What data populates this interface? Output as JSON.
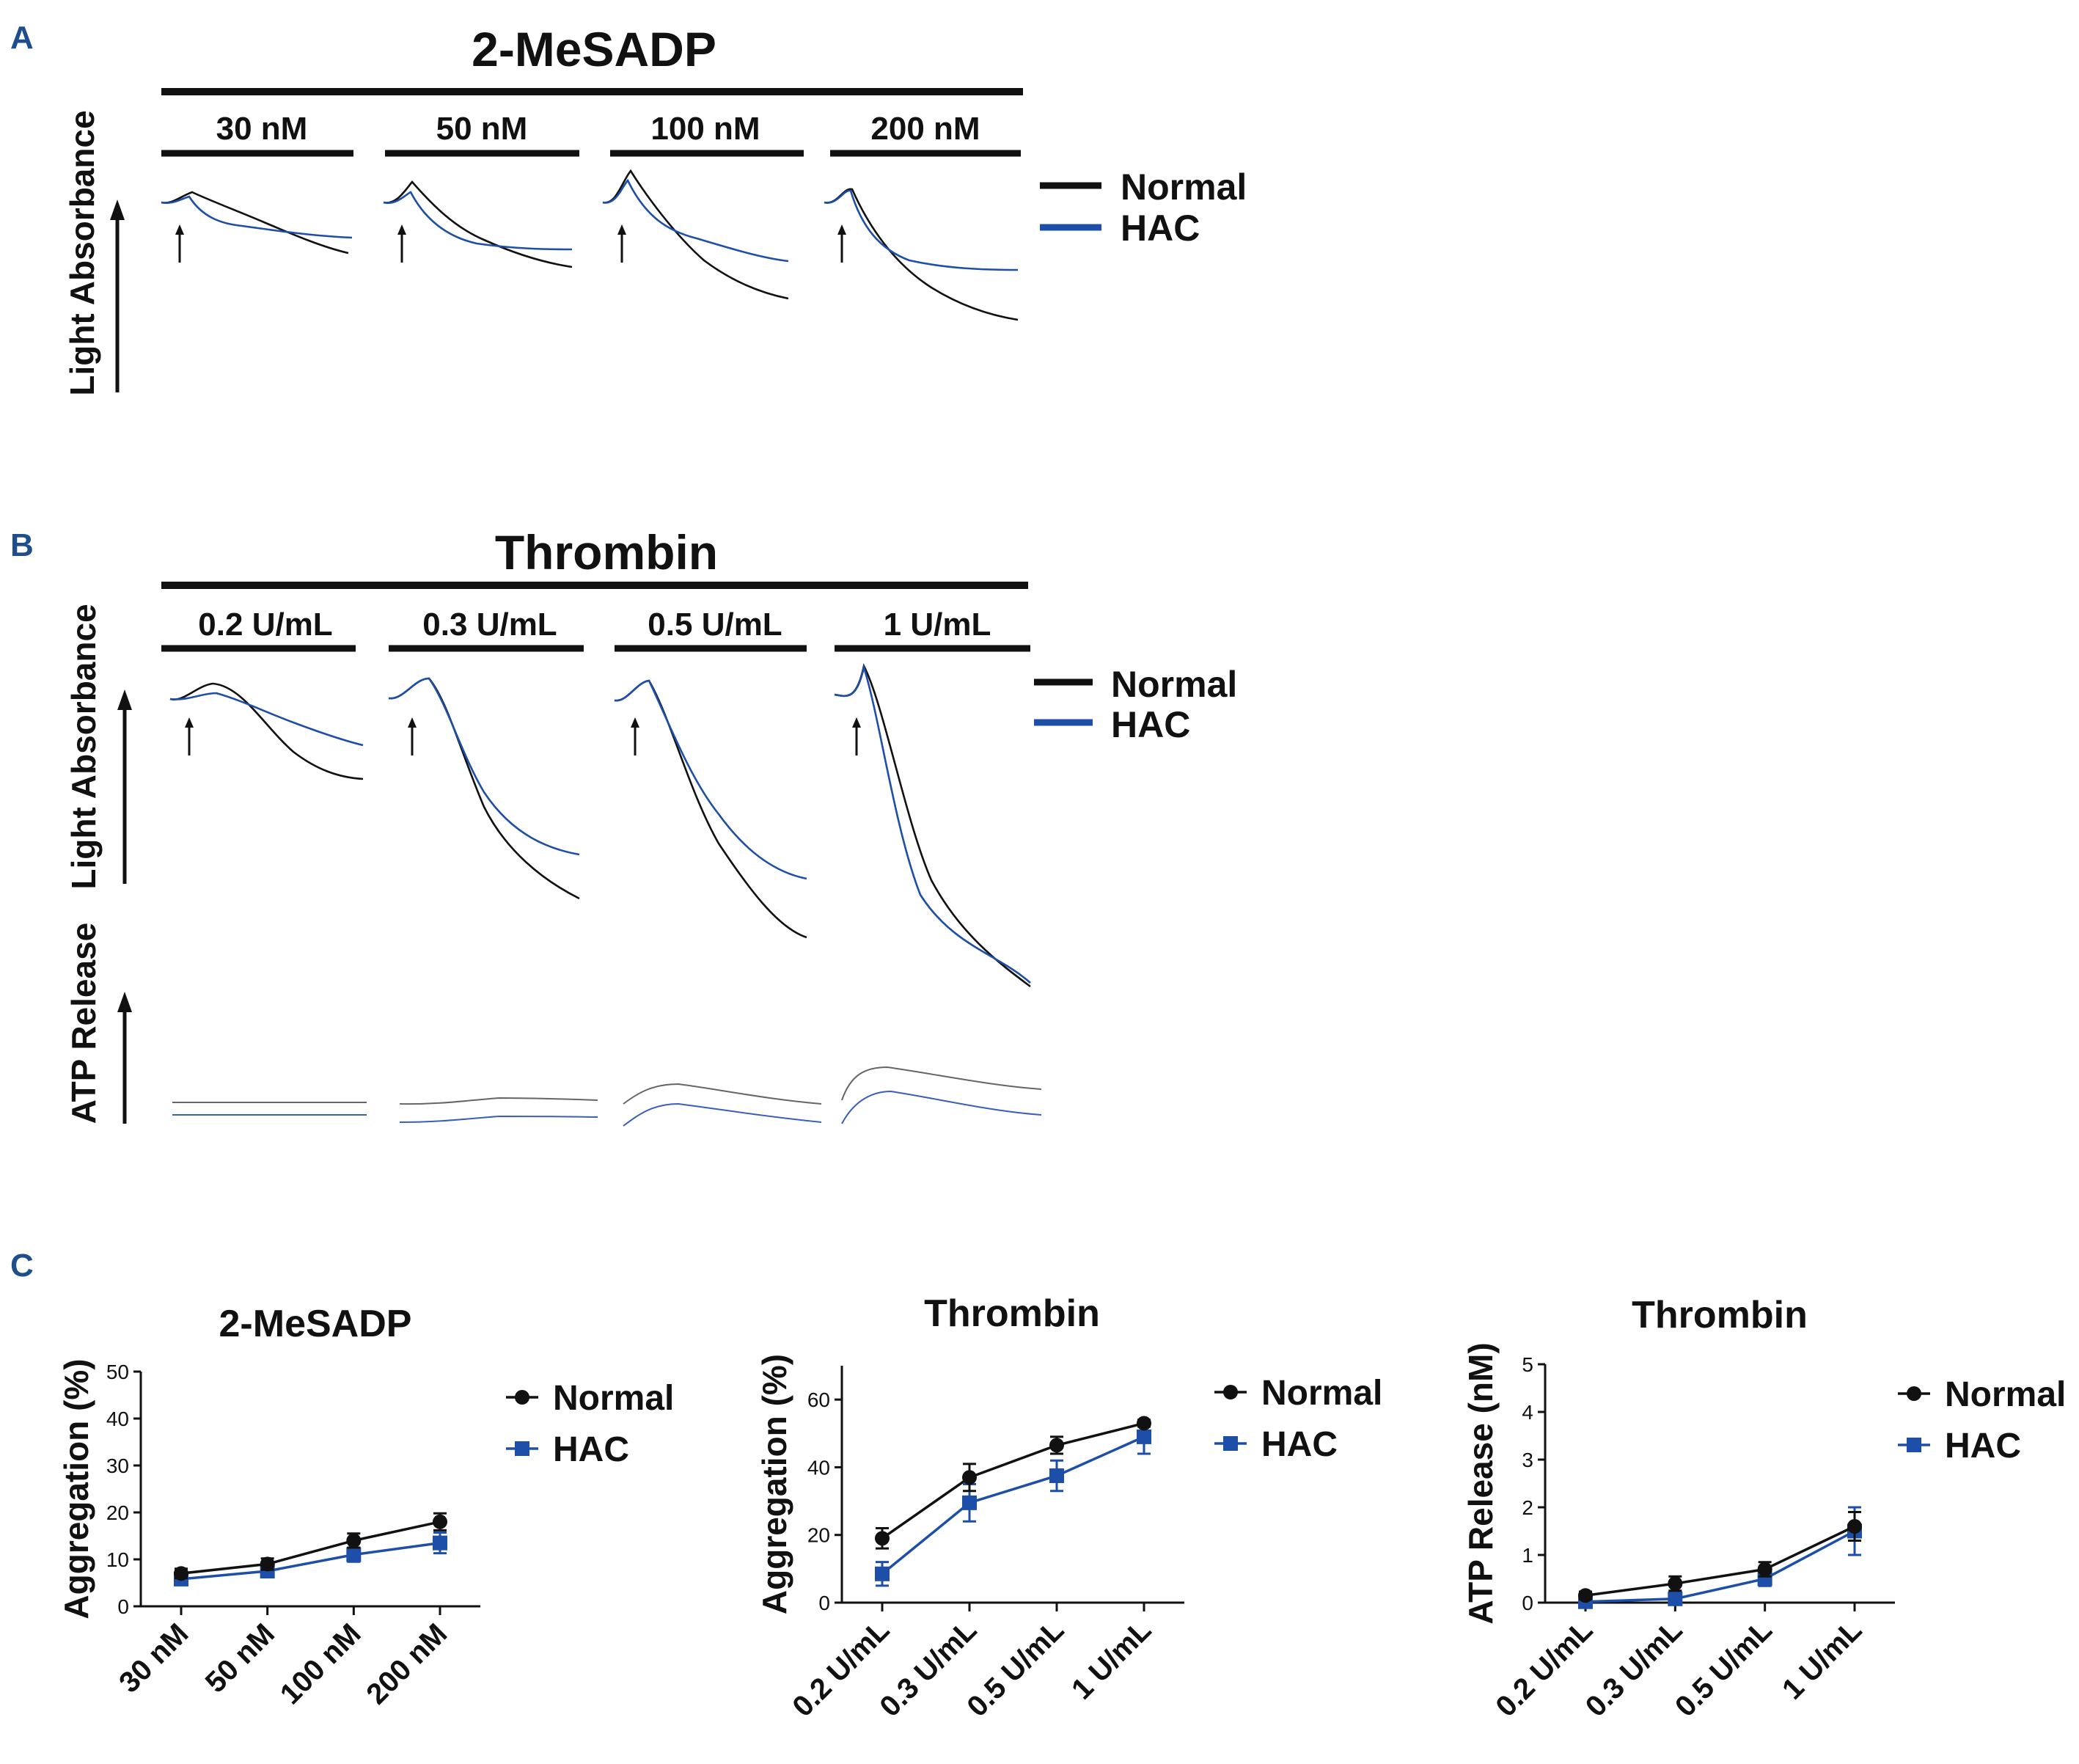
{
  "panel_letters": {
    "a": "A",
    "b": "B",
    "c": "C"
  },
  "colors": {
    "normal": "#111111",
    "hac": "#1e4fa8",
    "letter": "#1f4e8c"
  },
  "panel_a": {
    "title": "2-MeSADP",
    "concentrations": [
      "30 nM",
      "50 nM",
      "100 nM",
      "200 nM"
    ],
    "ylabel": "Light Absorbance",
    "legend": {
      "normal": "Normal",
      "hac": "HAC"
    }
  },
  "panel_b": {
    "title": "Thrombin",
    "concentrations": [
      "0.2 U/mL",
      "0.3 U/mL",
      "0.5 U/mL",
      "1 U/mL"
    ],
    "ylabel_top": "Light Absorbance",
    "ylabel_bottom": "ATP Release",
    "legend": {
      "normal": "Normal",
      "hac": "HAC"
    }
  },
  "chart_data": [
    {
      "type": "line",
      "title": "2-MeSADP",
      "xlabel": "",
      "ylabel": "Aggregation (%)",
      "categories": [
        "30 nM",
        "50 nM",
        "100 nM",
        "200 nM"
      ],
      "ylim": [
        0,
        50
      ],
      "yticks": [
        0,
        10,
        20,
        30,
        40,
        50
      ],
      "series": [
        {
          "name": "Normal",
          "marker": "circle",
          "values": [
            7,
            9,
            14,
            18
          ],
          "errors": [
            1,
            1.2,
            1.5,
            1.8
          ]
        },
        {
          "name": "HAC",
          "marker": "square",
          "values": [
            5.8,
            7.5,
            11,
            13.5
          ],
          "errors": [
            0.8,
            1,
            1.5,
            2.2
          ]
        }
      ]
    },
    {
      "type": "line",
      "title": "Thrombin",
      "xlabel": "",
      "ylabel": "Aggregation (%)",
      "categories": [
        "0.2 U/mL",
        "0.3 U/mL",
        "0.5 U/mL",
        "1 U/mL"
      ],
      "ylim": [
        0,
        70
      ],
      "yticks": [
        0,
        20,
        40,
        60
      ],
      "series": [
        {
          "name": "Normal",
          "marker": "circle",
          "values": [
            19,
            37,
            46.5,
            53
          ],
          "errors": [
            3,
            4,
            2.5,
            1
          ]
        },
        {
          "name": "HAC",
          "marker": "square",
          "values": [
            8.5,
            29.5,
            37.5,
            49
          ],
          "errors": [
            3.5,
            5.5,
            4.5,
            5
          ]
        }
      ]
    },
    {
      "type": "line",
      "title": "Thrombin",
      "xlabel": "",
      "ylabel": "ATP Release (nM)",
      "categories": [
        "0.2 U/mL",
        "0.3 U/mL",
        "0.5 U/mL",
        "1 U/mL"
      ],
      "ylim": [
        0,
        5
      ],
      "yticks": [
        0,
        1,
        2,
        3,
        4,
        5
      ],
      "series": [
        {
          "name": "Normal",
          "marker": "circle",
          "values": [
            0.15,
            0.4,
            0.7,
            1.6
          ],
          "errors": [
            0.08,
            0.15,
            0.15,
            0.3
          ]
        },
        {
          "name": "HAC",
          "marker": "square",
          "values": [
            0.02,
            0.08,
            0.5,
            1.5
          ],
          "errors": [
            0.05,
            0.08,
            0.15,
            0.5
          ]
        }
      ]
    }
  ]
}
